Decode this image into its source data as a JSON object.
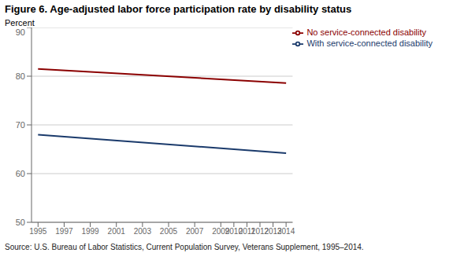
{
  "chart_data": {
    "type": "line",
    "title": "Figure 6. Age-adjusted labor force participation rate by disability status",
    "ylabel": "Percent",
    "annotations": [
      "Source: U.S. Bureau of Labor Statistics,  Current Population Survey, Veterans Supplement, 1995–2014."
    ],
    "x": [
      1995,
      2014
    ],
    "series": [
      {
        "name": "With service-connected disability",
        "color": "#1a3a6b",
        "values": [
          68.0,
          64.2
        ]
      },
      {
        "name": "No service-connected disability",
        "color": "#8b0000",
        "values": [
          81.5,
          78.6
        ]
      }
    ],
    "xlim": [
      1994.5,
      2014.5
    ],
    "xticks": [
      1995,
      1997,
      1999,
      2001,
      2003,
      2005,
      2007,
      2009,
      2010,
      2011,
      2012,
      2013,
      2014
    ],
    "ylim": [
      50,
      90
    ],
    "yticks": [
      50,
      60,
      70,
      80,
      90
    ],
    "grid": true,
    "legend": "upper right"
  }
}
